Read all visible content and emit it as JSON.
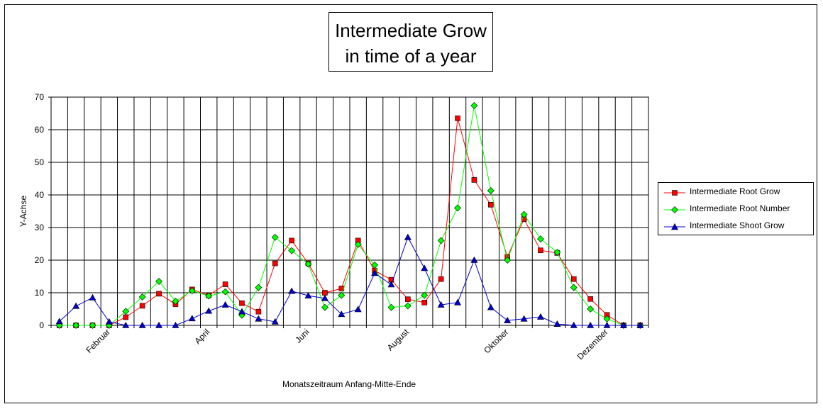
{
  "chart_data": {
    "type": "line",
    "title": [
      "Intermediate Grow",
      "in time of a year"
    ],
    "xlabel": "Monatszeitraum Anfang-Mitte-Ende",
    "ylabel": "Y-Achse",
    "ylim": [
      0,
      70
    ],
    "yticks": [
      0,
      10,
      20,
      30,
      40,
      50,
      60,
      70
    ],
    "grid": true,
    "legend_position": "right",
    "x_tick_labels": [
      {
        "index": 3,
        "label": "Februar"
      },
      {
        "index": 9,
        "label": "April"
      },
      {
        "index": 15,
        "label": "Juni"
      },
      {
        "index": 21,
        "label": "August"
      },
      {
        "index": 27,
        "label": "Oktober"
      },
      {
        "index": 33,
        "label": "Dezember"
      }
    ],
    "point_count": 36,
    "series": [
      {
        "name": "Intermediate Root Grow",
        "color": "#ff0000",
        "marker": "square",
        "values": [
          0,
          0,
          0,
          0,
          2.5,
          6,
          9.7,
          6.5,
          11,
          9.2,
          12.6,
          6.8,
          4.2,
          19,
          26,
          19,
          10,
          11.3,
          26,
          16.8,
          14,
          8,
          7,
          14.2,
          63.5,
          44.6,
          37,
          21,
          32.6,
          23,
          22.2,
          14.2,
          8.1,
          3.2,
          0,
          0
        ]
      },
      {
        "name": "Intermediate Root Number",
        "color": "#00ff00",
        "marker": "diamond",
        "values": [
          0,
          0,
          0,
          0,
          4.3,
          8.7,
          13.5,
          7.4,
          10.6,
          9,
          10.3,
          3.1,
          11.6,
          27,
          22.9,
          18.8,
          5.5,
          9.2,
          24.8,
          18.5,
          5.5,
          6,
          9.2,
          26,
          36,
          67.4,
          41.3,
          20,
          34,
          26.5,
          22.4,
          11.6,
          5,
          2,
          0,
          0
        ]
      },
      {
        "name": "Intermediate Shoot Grow",
        "color": "#0000cc",
        "marker": "triangle",
        "values": [
          1.2,
          5.9,
          8.5,
          1.1,
          0,
          0,
          0,
          0,
          2.1,
          4.4,
          6.3,
          4.2,
          2,
          1.1,
          10.5,
          9.1,
          8.3,
          3.4,
          4.9,
          16,
          12.5,
          27,
          17.5,
          6.3,
          7,
          20,
          5.5,
          1.5,
          2,
          2.6,
          0.4,
          0,
          0,
          0,
          0,
          0
        ]
      }
    ]
  }
}
